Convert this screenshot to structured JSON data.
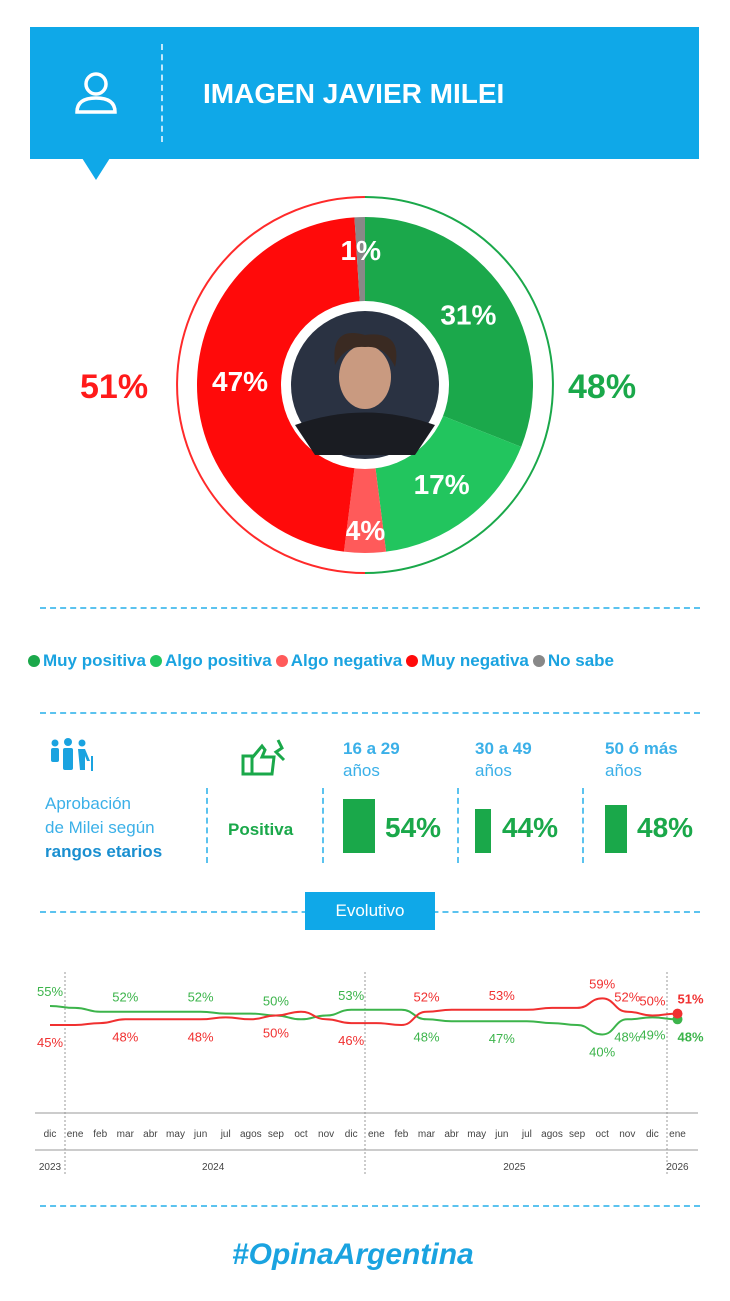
{
  "header": {
    "title": "IMAGEN JAVIER MILEI"
  },
  "donut": {
    "negative_total": "51%",
    "positive_total": "48%",
    "slices": [
      {
        "name": "Muy positiva",
        "value": 31,
        "label": "31%",
        "color": "#1ba84b"
      },
      {
        "name": "Algo positiva",
        "value": 17,
        "label": "17%",
        "color": "#22c55e"
      },
      {
        "name": "Algo negativa",
        "value": 4,
        "label": "4%",
        "color": "#ff5a5a"
      },
      {
        "name": "Muy negativa",
        "value": 47,
        "label": "47%",
        "color": "#ff0a0a"
      },
      {
        "name": "No sabe",
        "value": 1,
        "label": "1%",
        "color": "#888888"
      }
    ]
  },
  "legend": [
    "Muy positiva",
    "Algo positiva",
    "Algo negativa",
    "Muy negativa",
    "No sabe"
  ],
  "age": {
    "line1": "Aprobación",
    "line2": "de Milei según",
    "line3": "rangos etarios",
    "row_label": "Positiva",
    "groups": [
      {
        "l1": "16 a 29",
        "l2": "años",
        "value": 54,
        "label": "54%"
      },
      {
        "l1": "30 a 49",
        "l2": "años",
        "value": 44,
        "label": "44%"
      },
      {
        "l1": "50 ó más",
        "l2": "años",
        "value": 48,
        "label": "48%"
      }
    ]
  },
  "evolutivo": "Evolutivo",
  "chart_data": {
    "type": "line",
    "categories": [
      "dic",
      "ene",
      "feb",
      "mar",
      "abr",
      "may",
      "jun",
      "jul",
      "agos",
      "sep",
      "oct",
      "nov",
      "dic",
      "ene",
      "feb",
      "mar",
      "abr",
      "may",
      "jun",
      "jul",
      "agos",
      "sep",
      "oct",
      "nov",
      "dic",
      "ene"
    ],
    "years": [
      {
        "label": "2023",
        "from": 0,
        "to": 0
      },
      {
        "label": "2024",
        "from": 1,
        "to": 12
      },
      {
        "label": "2025",
        "from": 13,
        "to": 24
      },
      {
        "label": "2026",
        "from": 25,
        "to": 25
      }
    ],
    "ylim": [
      35,
      62
    ],
    "series": [
      {
        "name": "Positiva",
        "color": "#3cb44b",
        "values": [
          55,
          54,
          52,
          52,
          52,
          52,
          52,
          51,
          51,
          50,
          48,
          50,
          53,
          53,
          53,
          48,
          47,
          47,
          47,
          47,
          46,
          45,
          40,
          48,
          49,
          48
        ],
        "labels": [
          [
            0,
            "55%",
            "a"
          ],
          [
            3,
            "52%",
            "a"
          ],
          [
            6,
            "52%",
            "a"
          ],
          [
            9,
            "50%",
            "a"
          ],
          [
            12,
            "53%",
            "a"
          ],
          [
            15,
            "48%",
            "b"
          ],
          [
            18,
            "47%",
            "b"
          ],
          [
            22,
            "40%",
            "b"
          ],
          [
            23,
            "48%",
            "b"
          ],
          [
            24,
            "49%",
            "b"
          ],
          [
            25,
            "48%",
            "b"
          ]
        ]
      },
      {
        "name": "Negativa",
        "color": "#f03030",
        "values": [
          45,
          45,
          46,
          48,
          48,
          48,
          48,
          49,
          48,
          50,
          52,
          48,
          46,
          46,
          45,
          52,
          53,
          53,
          53,
          53,
          54,
          54,
          59,
          52,
          50,
          51
        ],
        "labels": [
          [
            0,
            "45%",
            "b"
          ],
          [
            3,
            "48%",
            "b"
          ],
          [
            6,
            "48%",
            "b"
          ],
          [
            9,
            "50%",
            "b"
          ],
          [
            12,
            "46%",
            "b"
          ],
          [
            15,
            "52%",
            "a"
          ],
          [
            18,
            "53%",
            "a"
          ],
          [
            22,
            "59%",
            "a"
          ],
          [
            23,
            "52%",
            "a"
          ],
          [
            24,
            "50%",
            "a"
          ],
          [
            25,
            "51%",
            "a"
          ]
        ]
      }
    ]
  },
  "logo": "#OpinaArgentina"
}
